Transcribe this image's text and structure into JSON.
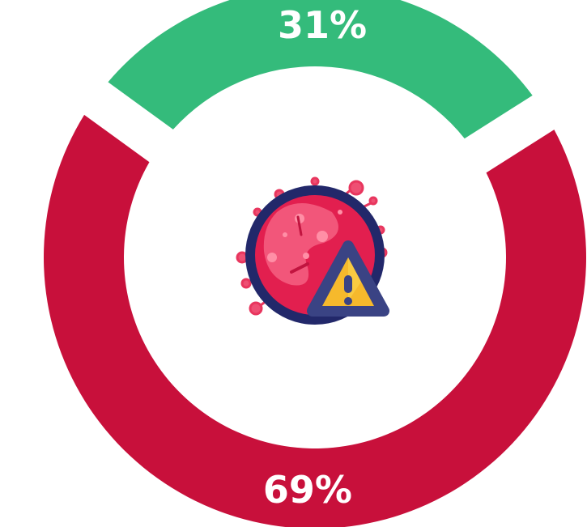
{
  "chart_data": {
    "type": "pie",
    "style": "donut",
    "slices": [
      {
        "value": 31,
        "label": "31%",
        "color": "#34bb7b"
      },
      {
        "value": 69,
        "label": "69%",
        "color": "#c8103b"
      }
    ],
    "center_icon": "virus-warning-icon",
    "legend": "none"
  }
}
